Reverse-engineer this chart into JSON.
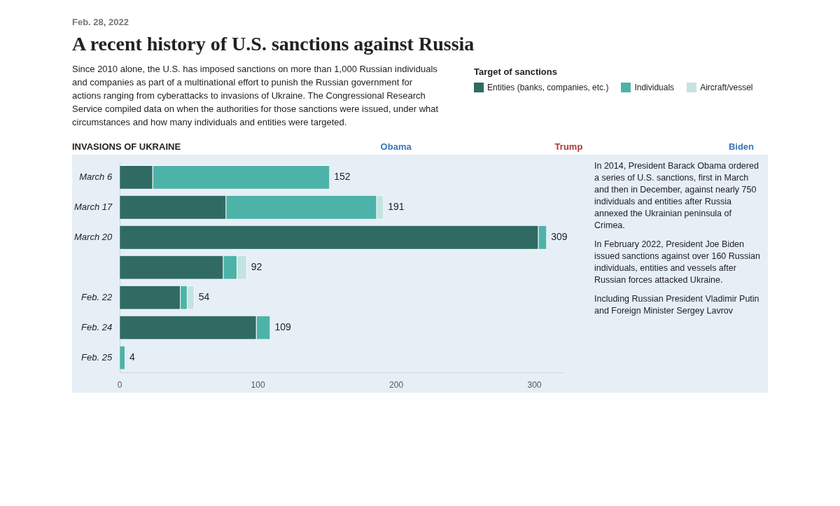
{
  "chart_data": {
    "type": "bar",
    "orientation": "horizontal",
    "stacked": true,
    "title": "A recent history of U.S. sanctions against Russia",
    "subtitle": "Since 2010 alone, the U.S. has imposed sanctions on more than 1,000 Russian individuals and companies as part of a multinational effort to punish the Russian government for actions ranging from cyberattacks to invasions of Ukraine. The Congressional Research Service compiled data on when the authorities for those sanctions were issued, under what circumstances and how many individuals and entities were targeted.",
    "annotations": [
      "Feb. 28, 2022",
      "INVASIONS OF UKRAINE",
      "Obama",
      "Trump",
      "Biden",
      "In 2014, President Barack Obama ordered a series of U.S. sanctions, first in March and then in December, against nearly 750 individuals and entities after Russia annexed the Ukrainian peninsula of Crimea.",
      "In February 2022, President Joe Biden issued sanctions against over 160 Russian individuals, entities and vessels after Russian forces attacked Ukraine.",
      "Including Russian President Vladimir Putin and Foreign Minister Sergey Lavrov"
    ],
    "legend_title": "Target of sanctions",
    "legend": "top right",
    "categories": [
      "March 6",
      "March 17",
      "March 20",
      null,
      "Feb. 22",
      "Feb. 24",
      "Feb. 25"
    ],
    "series": [
      {
        "name": "Entities (banks, companies, etc.)",
        "color": "#2f6b63",
        "values": [
          24,
          77,
          303,
          75,
          44,
          99,
          0
        ]
      },
      {
        "name": "Individuals",
        "color": "#4db3a8",
        "values": [
          128,
          109,
          6,
          10,
          5,
          10,
          4
        ]
      },
      {
        "name": "Aircraft/vessel",
        "color": "#c5e3e0",
        "values": [
          0,
          5,
          0,
          7,
          5,
          0,
          0
        ]
      }
    ],
    "totals": [
      "152",
      "191",
      "309",
      "92",
      "54",
      "109",
      "4"
    ],
    "xlim": [
      0,
      320
    ],
    "xticks": [
      0,
      100,
      200,
      300
    ]
  }
}
